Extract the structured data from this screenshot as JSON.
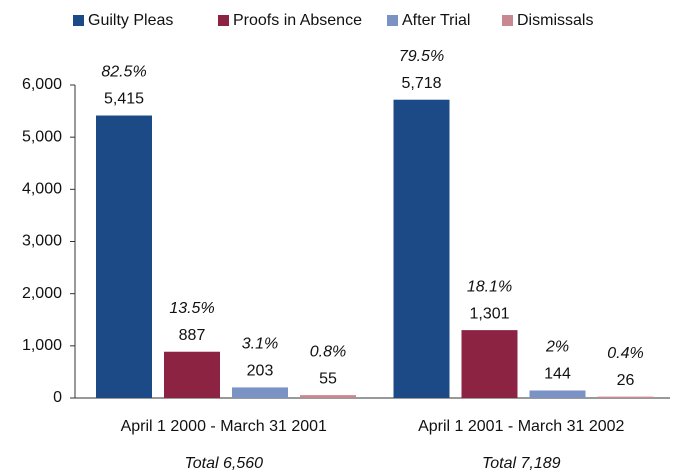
{
  "chart_data": {
    "type": "bar",
    "categories": [
      "April 1 2000 - March 31 2001",
      "April 1 2001 - March 31 2002"
    ],
    "category_totals": [
      "Total 6,560",
      "Total 7,189"
    ],
    "series": [
      {
        "name": "Guilty Pleas",
        "color": "#1b4a86",
        "values": [
          5415,
          5718
        ],
        "value_labels": [
          "5,415",
          "5,718"
        ],
        "percent_labels": [
          "82.5%",
          "79.5%"
        ]
      },
      {
        "name": "Proofs in Absence",
        "color": "#8c2343",
        "values": [
          887,
          1301
        ],
        "value_labels": [
          "887",
          "1,301"
        ],
        "percent_labels": [
          "13.5%",
          "18.1%"
        ]
      },
      {
        "name": "After Trial",
        "color": "#7a93c4",
        "values": [
          203,
          144
        ],
        "value_labels": [
          "203",
          "144"
        ],
        "percent_labels": [
          "3.1%",
          "2%"
        ]
      },
      {
        "name": "Dismissals",
        "color": "#c98891",
        "values": [
          55,
          26
        ],
        "value_labels": [
          "55",
          "26"
        ],
        "percent_labels": [
          "0.8%",
          "0.4%"
        ]
      }
    ],
    "ylim": [
      0,
      6000
    ],
    "yticks": [
      0,
      {
        "value": 1000,
        "label": "1,000"
      },
      {
        "value": 2000,
        "label": "2,000"
      },
      {
        "value": 3000,
        "label": "3,000"
      },
      {
        "value": 4000,
        "label": "4,000"
      },
      {
        "value": 5000,
        "label": "5,000"
      },
      {
        "value": 6000,
        "label": "6,000"
      }
    ],
    "legend": "top"
  }
}
